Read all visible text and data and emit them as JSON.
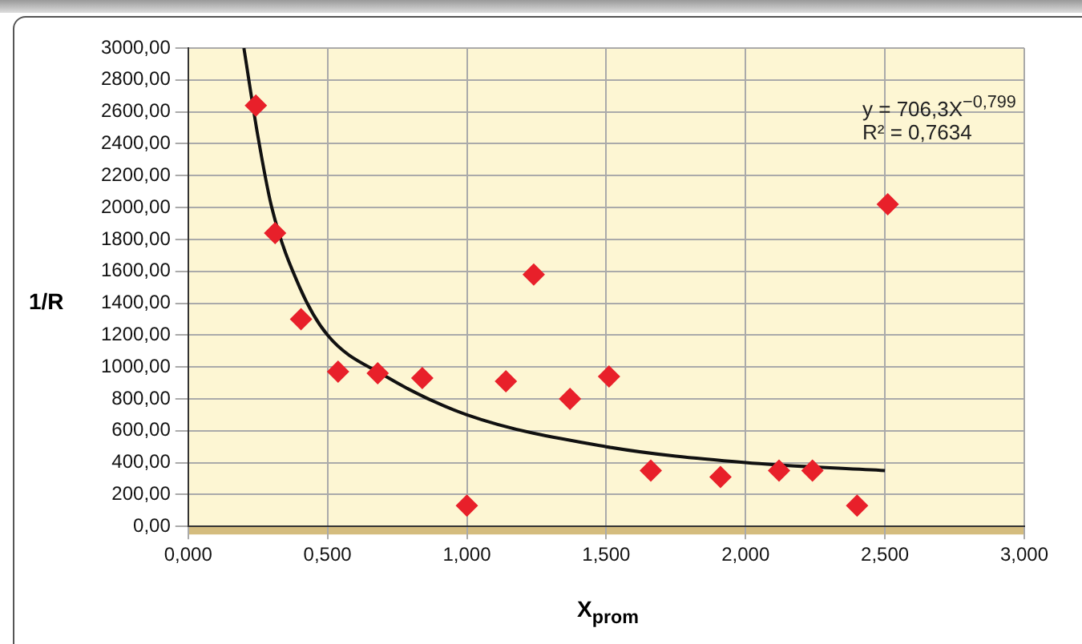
{
  "chart_data": {
    "type": "scatter",
    "xlabel": "X$_{prom}$",
    "ylabel": "1/R",
    "annotations": [
      "y = 706,3X$^{−0,799}$",
      "R² = 0,7634"
    ],
    "series": [
      {
        "color": "#e8202a",
        "marker": "diamond",
        "x": [
          0.243,
          0.312,
          0.405,
          0.538,
          0.68,
          0.84,
          1.0,
          1.14,
          1.24,
          1.37,
          1.51,
          1.66,
          1.91,
          2.12,
          2.24,
          2.4,
          2.51
        ],
        "values": [
          2640,
          1840,
          1300,
          970,
          960,
          930,
          130,
          910,
          1580,
          800,
          940,
          350,
          310,
          350,
          350,
          130,
          2020
        ]
      },
      {
        "type": "line",
        "color": "#111111",
        "marker": "none",
        "x": [
          0.2,
          0.25,
          0.3,
          0.4,
          0.5,
          0.7,
          1.0,
          1.5,
          2.0,
          2.5
        ],
        "values": [
          3000,
          2450,
          2000,
          1500,
          1200,
          950,
          700,
          500,
          400,
          350
        ]
      }
    ],
    "xlim": [
      0,
      3
    ],
    "xticks": [
      {
        "value": 0,
        "label": "0,000"
      },
      {
        "value": 0.5,
        "label": "0,500"
      },
      {
        "value": 1,
        "label": "1,000"
      },
      {
        "value": 1.5,
        "label": "1,500"
      },
      {
        "value": 2,
        "label": "2,000"
      },
      {
        "value": 2.5,
        "label": "2,500"
      },
      {
        "value": 3,
        "label": "3,000"
      }
    ],
    "ylim": [
      0,
      3000
    ],
    "yticks": [
      {
        "value": 0,
        "label": "0,00"
      },
      {
        "value": 200,
        "label": "200,00"
      },
      {
        "value": 400,
        "label": "400,00"
      },
      {
        "value": 600,
        "label": "600,00"
      },
      {
        "value": 800,
        "label": "800,00"
      },
      {
        "value": 1000,
        "label": "1000,00"
      },
      {
        "value": 1200,
        "label": "1200,00"
      },
      {
        "value": 1400,
        "label": "1400,00"
      },
      {
        "value": 1600,
        "label": "1600,00"
      },
      {
        "value": 1800,
        "label": "1800,00"
      },
      {
        "value": 2000,
        "label": "2000,00"
      },
      {
        "value": 2200,
        "label": "2200,00"
      },
      {
        "value": 2400,
        "label": "2400,00"
      },
      {
        "value": 2600,
        "label": "2600,00"
      },
      {
        "value": 2800,
        "label": "2800,00"
      },
      {
        "value": 3000,
        "label": "3000,00"
      }
    ],
    "grid": true,
    "legend": false
  }
}
